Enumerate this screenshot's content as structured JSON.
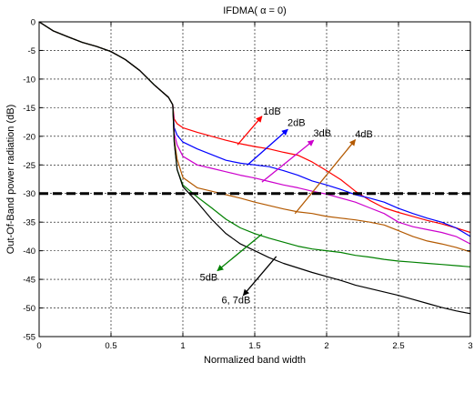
{
  "chart_data": {
    "type": "line",
    "title": "IFDMA( α = 0)",
    "xlabel": "Normalized band width",
    "ylabel": "Out-Of-Band power radiation (dB)",
    "xlim": [
      0,
      3
    ],
    "ylim": [
      -55,
      0
    ],
    "xticks": [
      0,
      0.5,
      1,
      1.5,
      2,
      2.5,
      3
    ],
    "xtick_labels": [
      "0",
      "0.5",
      "1",
      "1.5",
      "2",
      "2.5",
      "3"
    ],
    "yticks": [
      0,
      -5,
      -10,
      -15,
      -20,
      -25,
      -30,
      -35,
      -40,
      -45,
      -50,
      -55
    ],
    "ytick_labels": [
      "0",
      "-5",
      "-10",
      "-15",
      "-20",
      "-25",
      "-30",
      "-35",
      "-40",
      "-45",
      "-50",
      "-55"
    ],
    "grid": true,
    "reference_line": {
      "y": -30,
      "style": "thick black dashed"
    },
    "series": [
      {
        "color": "#ff0000",
        "x": [
          0,
          0.1,
          0.2,
          0.3,
          0.4,
          0.5,
          0.6,
          0.7,
          0.8,
          0.9,
          0.93,
          0.94,
          0.96,
          1.0,
          1.1,
          1.2,
          1.3,
          1.4,
          1.5,
          1.6,
          1.7,
          1.8,
          1.9,
          2.0,
          2.1,
          2.2,
          2.3,
          2.4,
          2.5,
          2.6,
          2.7,
          2.8,
          2.9,
          3.0
        ],
        "y": [
          0,
          -1.6,
          -2.6,
          -3.6,
          -4.3,
          -5.2,
          -6.6,
          -8.5,
          -11.0,
          -13.2,
          -14.5,
          -17.0,
          -17.8,
          -18.5,
          -19.3,
          -20.0,
          -20.7,
          -21.3,
          -21.8,
          -22.2,
          -22.8,
          -23.3,
          -24.5,
          -26.0,
          -27.6,
          -29.6,
          -31.2,
          -32.5,
          -33.3,
          -34.0,
          -34.7,
          -35.3,
          -36.0,
          -36.8
        ]
      },
      {
        "color": "#0000ff",
        "x": [
          0,
          0.1,
          0.2,
          0.3,
          0.4,
          0.5,
          0.6,
          0.7,
          0.8,
          0.9,
          0.93,
          0.94,
          0.96,
          1.0,
          1.1,
          1.2,
          1.3,
          1.4,
          1.5,
          1.6,
          1.7,
          1.8,
          1.9,
          2.0,
          2.1,
          2.2,
          2.3,
          2.4,
          2.5,
          2.6,
          2.7,
          2.8,
          2.9,
          3.0
        ],
        "y": [
          0,
          -1.6,
          -2.6,
          -3.6,
          -4.3,
          -5.2,
          -6.6,
          -8.5,
          -11.0,
          -13.2,
          -14.5,
          -18.5,
          -19.8,
          -21.0,
          -22.2,
          -23.2,
          -24.2,
          -24.7,
          -25.0,
          -25.3,
          -26.0,
          -26.8,
          -27.8,
          -28.5,
          -29.3,
          -30.2,
          -30.8,
          -31.5,
          -32.6,
          -33.5,
          -34.3,
          -35.0,
          -36.0,
          -37.5
        ]
      },
      {
        "color": "#cc00cc",
        "x": [
          0,
          0.1,
          0.2,
          0.3,
          0.4,
          0.5,
          0.6,
          0.7,
          0.8,
          0.9,
          0.93,
          0.94,
          0.96,
          1.0,
          1.1,
          1.2,
          1.3,
          1.4,
          1.5,
          1.6,
          1.7,
          1.8,
          1.9,
          2.0,
          2.1,
          2.2,
          2.3,
          2.4,
          2.5,
          2.6,
          2.7,
          2.8,
          2.9,
          3.0
        ],
        "y": [
          0,
          -1.6,
          -2.6,
          -3.6,
          -4.3,
          -5.2,
          -6.6,
          -8.5,
          -11.0,
          -13.2,
          -14.5,
          -19.5,
          -21.5,
          -23.5,
          -25.0,
          -25.6,
          -26.2,
          -26.8,
          -27.3,
          -27.9,
          -28.5,
          -29.0,
          -29.6,
          -30.1,
          -30.8,
          -31.5,
          -32.5,
          -33.5,
          -35.0,
          -35.8,
          -36.3,
          -36.8,
          -37.5,
          -38.8
        ]
      },
      {
        "color": "#b35900",
        "x": [
          0,
          0.1,
          0.2,
          0.3,
          0.4,
          0.5,
          0.6,
          0.7,
          0.8,
          0.9,
          0.93,
          0.94,
          0.96,
          1.0,
          1.1,
          1.2,
          1.3,
          1.4,
          1.5,
          1.6,
          1.7,
          1.8,
          1.9,
          2.0,
          2.1,
          2.2,
          2.3,
          2.4,
          2.5,
          2.6,
          2.7,
          2.8,
          2.9,
          3.0
        ],
        "y": [
          0,
          -1.6,
          -2.6,
          -3.6,
          -4.3,
          -5.2,
          -6.6,
          -8.5,
          -11.0,
          -13.2,
          -14.5,
          -20.5,
          -24.0,
          -27.2,
          -29.0,
          -29.6,
          -30.2,
          -30.8,
          -31.5,
          -32.1,
          -32.7,
          -33.2,
          -33.5,
          -34.0,
          -34.3,
          -34.6,
          -35.0,
          -35.5,
          -36.5,
          -37.5,
          -38.3,
          -38.8,
          -39.4,
          -40.2
        ]
      },
      {
        "color": "#008000",
        "x": [
          0,
          0.1,
          0.2,
          0.3,
          0.4,
          0.5,
          0.6,
          0.7,
          0.8,
          0.9,
          0.93,
          0.94,
          0.96,
          1.0,
          1.1,
          1.2,
          1.3,
          1.4,
          1.5,
          1.6,
          1.7,
          1.8,
          1.9,
          2.0,
          2.1,
          2.2,
          2.3,
          2.4,
          2.5,
          2.6,
          2.7,
          2.8,
          2.9,
          3.0
        ],
        "y": [
          0,
          -1.6,
          -2.6,
          -3.6,
          -4.3,
          -5.2,
          -6.6,
          -8.5,
          -11.0,
          -13.2,
          -14.5,
          -21.0,
          -25.8,
          -28.5,
          -30.6,
          -32.5,
          -34.5,
          -36.0,
          -37.0,
          -37.8,
          -38.5,
          -39.2,
          -39.7,
          -40.0,
          -40.3,
          -40.8,
          -41.1,
          -41.5,
          -41.8,
          -42.0,
          -42.2,
          -42.4,
          -42.6,
          -42.8
        ]
      },
      {
        "color": "#000000",
        "x": [
          0,
          0.1,
          0.2,
          0.3,
          0.4,
          0.5,
          0.6,
          0.7,
          0.8,
          0.9,
          0.93,
          0.94,
          0.96,
          1.0,
          1.1,
          1.2,
          1.3,
          1.4,
          1.5,
          1.6,
          1.7,
          1.8,
          1.9,
          2.0,
          2.1,
          2.2,
          2.3,
          2.4,
          2.5,
          2.6,
          2.7,
          2.8,
          2.9,
          3.0
        ],
        "y": [
          0,
          -1.6,
          -2.6,
          -3.6,
          -4.3,
          -5.2,
          -6.6,
          -8.5,
          -11.0,
          -13.2,
          -14.5,
          -21.0,
          -25.8,
          -28.8,
          -31.5,
          -34.5,
          -37.0,
          -38.8,
          -40.0,
          -41.2,
          -42.2,
          -43.0,
          -43.8,
          -44.5,
          -45.2,
          -46.0,
          -46.6,
          -47.2,
          -47.8,
          -48.5,
          -49.2,
          -49.9,
          -50.5,
          -51.0
        ]
      }
    ],
    "annotations": [
      {
        "text": "1dB",
        "color": "#ff0000",
        "label_at": [
          1.62,
          -16.2
        ],
        "arrow_from": [
          1.38,
          -21.5
        ],
        "arrow_to": [
          1.55,
          -16.5
        ]
      },
      {
        "text": "2dB",
        "color": "#0000ff",
        "label_at": [
          1.79,
          -18.2
        ],
        "arrow_from": [
          1.45,
          -25.0
        ],
        "arrow_to": [
          1.73,
          -18.8
        ]
      },
      {
        "text": "3dB",
        "color": "#cc00cc",
        "label_at": [
          1.97,
          -20.0
        ],
        "arrow_from": [
          1.55,
          -28.0
        ],
        "arrow_to": [
          1.91,
          -20.7
        ]
      },
      {
        "text": "4dB",
        "color": "#b35900",
        "label_at": [
          2.26,
          -20.2
        ],
        "arrow_from": [
          1.78,
          -33.5
        ],
        "arrow_to": [
          2.2,
          -20.6
        ]
      },
      {
        "text": "5dB",
        "color": "#008000",
        "label_at": [
          1.18,
          -45.2
        ],
        "arrow_from": [
          1.55,
          -37.1
        ],
        "arrow_to": [
          1.24,
          -43.5
        ]
      },
      {
        "text": "6, 7dB",
        "color": "#000000",
        "label_at": [
          1.37,
          -49.2
        ],
        "arrow_from": [
          1.65,
          -41.0
        ],
        "arrow_to": [
          1.42,
          -47.8
        ]
      }
    ]
  }
}
